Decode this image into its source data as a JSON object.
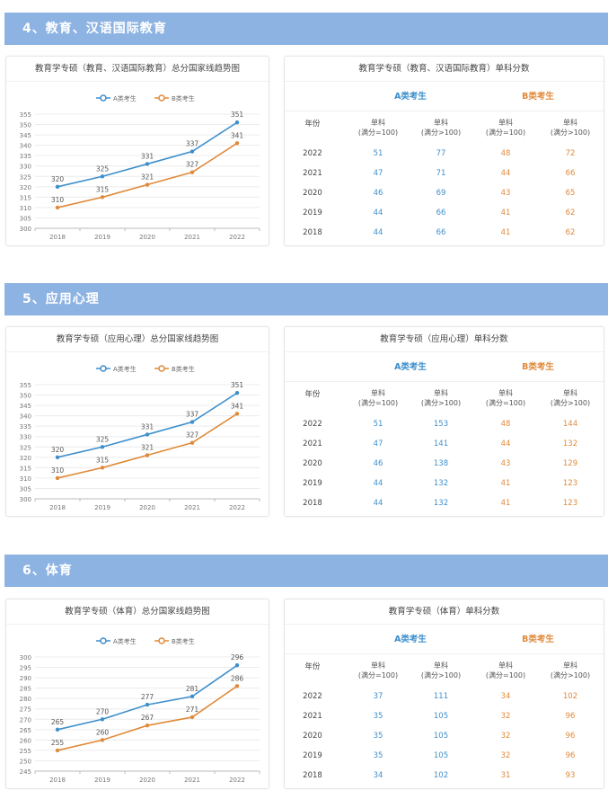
{
  "sections": [
    {
      "banner": "4、教育、汉语国际教育",
      "chart": {
        "title": "教育学专硕（教育、汉语国际教育）总分国家线趋势图",
        "legend": [
          "A类考生",
          "B类考生"
        ]
      },
      "table": {
        "title": "教育学专硕（教育、汉语国际教育）单科分数",
        "group_a": "A类考生",
        "group_b": "B类考生",
        "year_header": "年份",
        "col_headers": [
          "单科\n(满分=100)",
          "单科\n(满分>100)",
          "单科\n(满分=100)",
          "单科\n(满分>100)"
        ],
        "rows": [
          [
            "2022",
            "51",
            "77",
            "48",
            "72"
          ],
          [
            "2021",
            "47",
            "71",
            "44",
            "66"
          ],
          [
            "2020",
            "46",
            "69",
            "43",
            "65"
          ],
          [
            "2019",
            "44",
            "66",
            "41",
            "62"
          ],
          [
            "2018",
            "44",
            "66",
            "41",
            "62"
          ]
        ]
      }
    },
    {
      "banner": "5、应用心理",
      "chart": {
        "title": "教育学专硕（应用心理）总分国家线趋势图",
        "legend": [
          "A类考生",
          "B类考生"
        ]
      },
      "table": {
        "title": "教育学专硕（应用心理）单科分数",
        "group_a": "A类考生",
        "group_b": "B类考生",
        "year_header": "年份",
        "col_headers": [
          "单科\n(满分=100)",
          "单科\n(满分>100)",
          "单科\n(满分=100)",
          "单科\n(满分>100)"
        ],
        "rows": [
          [
            "2022",
            "51",
            "153",
            "48",
            "144"
          ],
          [
            "2021",
            "47",
            "141",
            "44",
            "132"
          ],
          [
            "2020",
            "46",
            "138",
            "43",
            "129"
          ],
          [
            "2019",
            "44",
            "132",
            "41",
            "123"
          ],
          [
            "2018",
            "44",
            "132",
            "41",
            "123"
          ]
        ]
      }
    },
    {
      "banner": "6、体育",
      "chart": {
        "title": "教育学专硕（体育）总分国家线趋势图",
        "legend": [
          "A类考生",
          "B类考生"
        ]
      },
      "table": {
        "title": "教育学专硕（体育）单科分数",
        "group_a": "A类考生",
        "group_b": "B类考生",
        "year_header": "年份",
        "col_headers": [
          "单科\n(满分=100)",
          "单科\n(满分>100)",
          "单科\n(满分=100)",
          "单科\n(满分>100)"
        ],
        "rows": [
          [
            "2022",
            "37",
            "111",
            "34",
            "102"
          ],
          [
            "2021",
            "35",
            "105",
            "32",
            "96"
          ],
          [
            "2020",
            "35",
            "105",
            "32",
            "96"
          ],
          [
            "2019",
            "35",
            "105",
            "32",
            "96"
          ],
          [
            "2018",
            "34",
            "102",
            "31",
            "93"
          ]
        ]
      }
    }
  ],
  "colors": {
    "banner": "#8db3e3",
    "series_a": "#3d8fcc",
    "series_b": "#e08a3a"
  },
  "chart_data": [
    {
      "type": "line",
      "title": "教育学专硕（教育、汉语国际教育）总分国家线趋势图",
      "x": [
        "2018",
        "2019",
        "2020",
        "2021",
        "2022"
      ],
      "series": [
        {
          "name": "A类考生",
          "values": [
            320,
            325,
            331,
            337,
            351
          ]
        },
        {
          "name": "B类考生",
          "values": [
            310,
            315,
            321,
            327,
            341
          ]
        }
      ],
      "ylim": [
        300,
        355
      ],
      "yticks": [
        300,
        305,
        310,
        315,
        320,
        325,
        330,
        335,
        340,
        345,
        350,
        355
      ],
      "grid": true,
      "legend": "top"
    },
    {
      "type": "line",
      "title": "教育学专硕（应用心理）总分国家线趋势图",
      "x": [
        "2018",
        "2019",
        "2020",
        "2021",
        "2022"
      ],
      "series": [
        {
          "name": "A类考生",
          "values": [
            320,
            325,
            331,
            337,
            351
          ]
        },
        {
          "name": "B类考生",
          "values": [
            310,
            315,
            321,
            327,
            341
          ]
        }
      ],
      "ylim": [
        300,
        355
      ],
      "yticks": [
        300,
        305,
        310,
        315,
        320,
        325,
        330,
        335,
        340,
        345,
        350,
        355
      ],
      "grid": true,
      "legend": "top"
    },
    {
      "type": "line",
      "title": "教育学专硕（体育）总分国家线趋势图",
      "x": [
        "2018",
        "2019",
        "2020",
        "2021",
        "2022"
      ],
      "series": [
        {
          "name": "A类考生",
          "values": [
            265,
            270,
            277,
            281,
            296
          ]
        },
        {
          "name": "B类考生",
          "values": [
            255,
            260,
            267,
            271,
            286
          ]
        }
      ],
      "ylim": [
        245,
        300
      ],
      "yticks": [
        245,
        250,
        255,
        260,
        265,
        270,
        275,
        280,
        285,
        290,
        295,
        300
      ],
      "grid": true,
      "legend": "top"
    }
  ]
}
